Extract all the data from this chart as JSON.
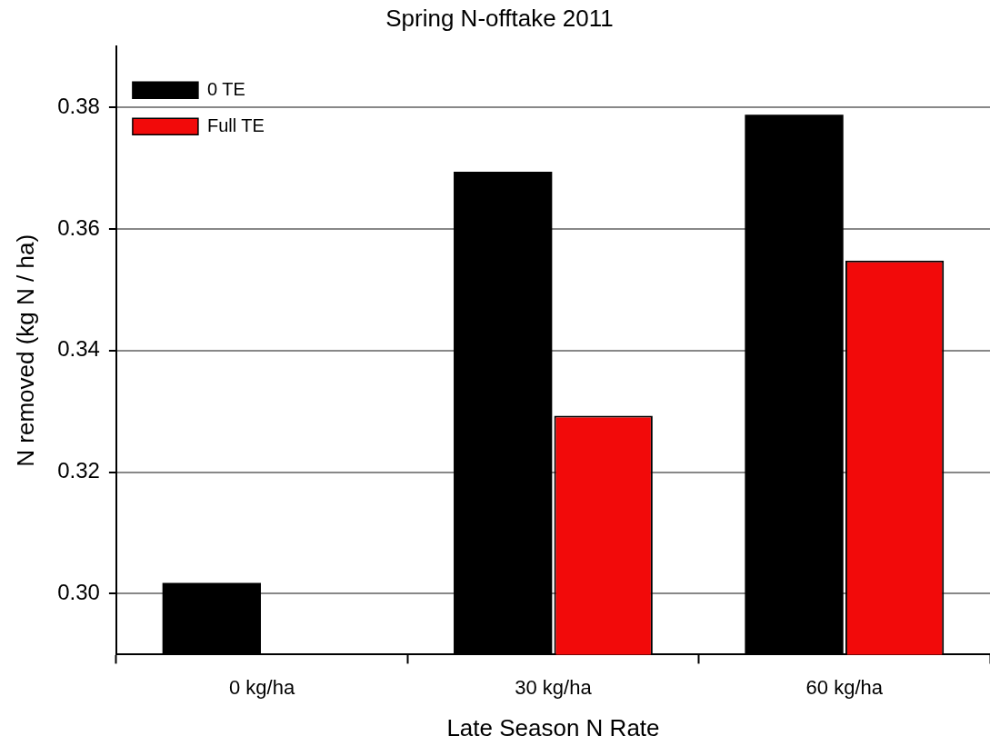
{
  "chart_data": {
    "type": "bar",
    "title": "Spring N-offtake 2011",
    "xlabel": "Late Season N Rate",
    "ylabel": "N removed (kg N / ha)",
    "categories": [
      "0 kg/ha",
      "30 kg/ha",
      "60 kg/ha"
    ],
    "series": [
      {
        "name": "0 TE",
        "color": "#000000",
        "values": [
          0.3018,
          0.3694,
          0.3788
        ]
      },
      {
        "name": "Full TE",
        "color": "#f20a0a",
        "values": [
          null,
          0.3293,
          0.3548
        ]
      }
    ],
    "ylim": [
      0.29,
      0.39
    ],
    "yticks": [
      {
        "value": 0.3,
        "label": "0.30"
      },
      {
        "value": 0.32,
        "label": "0.32"
      },
      {
        "value": 0.34,
        "label": "0.34"
      },
      {
        "value": 0.36,
        "label": "0.36"
      },
      {
        "value": 0.38,
        "label": "0.38"
      }
    ],
    "grid": "y",
    "legend": "top left"
  }
}
